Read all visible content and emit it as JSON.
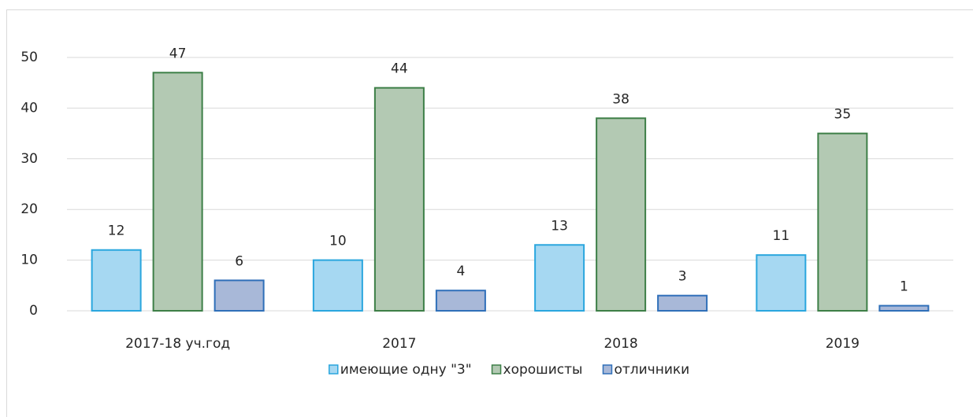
{
  "chart_data": {
    "type": "bar",
    "categories": [
      "2017-18 уч.год",
      "2017",
      "2018",
      "2019"
    ],
    "series": [
      {
        "name": "имеющие одну \"3\"",
        "color": "#a6d8f2",
        "edgecolor": "#2aa6de",
        "values": [
          12,
          10,
          13,
          11
        ]
      },
      {
        "name": "хорошисты",
        "color": "#b3c9b3",
        "edgecolor": "#3d7f47",
        "values": [
          47,
          44,
          38,
          35
        ]
      },
      {
        "name": "отличники",
        "color": "#a8b8d8",
        "edgecolor": "#2f6fb9",
        "values": [
          6,
          4,
          3,
          1
        ]
      }
    ],
    "ylim": [
      0,
      50
    ],
    "yticks": [
      0,
      10,
      20,
      30,
      40,
      50
    ],
    "grid": true,
    "legend": "bottom"
  }
}
